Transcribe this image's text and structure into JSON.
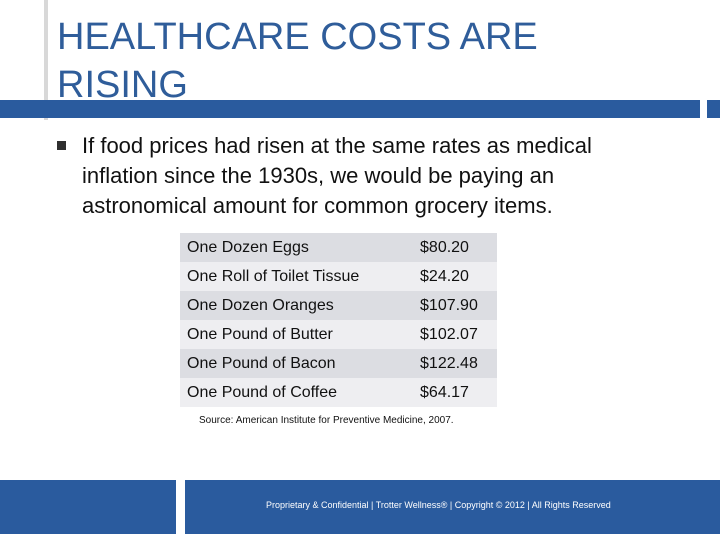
{
  "slide": {
    "title": "HEALTHCARE COSTS ARE RISING",
    "bullet": "If food prices had risen at the same rates as medical inflation since the 1930s, we would be paying an astronomical amount for common grocery items."
  },
  "table": {
    "rows": [
      {
        "item": "One Dozen Eggs",
        "price": "$80.20"
      },
      {
        "item": "One Roll of Toilet Tissue",
        "price": "$24.20"
      },
      {
        "item": "One Dozen Oranges",
        "price": "$107.90"
      },
      {
        "item": "One Pound of Butter",
        "price": "$102.07"
      },
      {
        "item": "One Pound of Bacon",
        "price": "$122.48"
      },
      {
        "item": "One Pound of Coffee",
        "price": "$64.17"
      }
    ]
  },
  "source": "Source: American Institute for Preventive Medicine, 2007.",
  "footer": {
    "text": "Proprietary & Confidential | Trotter Wellness® | Copyright © 2012 | All Rights Reserved"
  },
  "colors": {
    "accent": "#2a5b9e",
    "title": "#2f5d9a"
  }
}
